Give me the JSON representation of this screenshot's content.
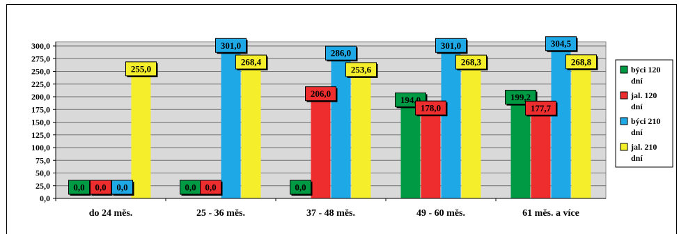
{
  "chart_data": {
    "type": "bar",
    "categories": [
      "do 24 měs.",
      "25 - 36 měs.",
      "37 - 48  měs.",
      "49 - 60 měs.",
      "61 měs. a více"
    ],
    "series": [
      {
        "name": "býci 120 dní",
        "color": "#009a44",
        "values": [
          0.0,
          0.0,
          0.0,
          194.0,
          199.2
        ],
        "labels": [
          "0,0",
          "0,0",
          "0,0",
          "194,0",
          "199,2"
        ]
      },
      {
        "name": "jal. 120 dní",
        "color": "#ee2e2e",
        "values": [
          0.0,
          0.0,
          206.0,
          178.0,
          177.7
        ],
        "labels": [
          "0,0",
          "0,0",
          "206,0",
          "178,0",
          "177,7"
        ]
      },
      {
        "name": "býci 210 dní",
        "color": "#1ea8e6",
        "values": [
          0.0,
          301.0,
          286.0,
          301.0,
          304.5
        ],
        "labels": [
          "0,0",
          "301,0",
          "286,0",
          "301,0",
          "304,5"
        ]
      },
      {
        "name": "jal. 210 dní",
        "color": "#f5ee2a",
        "values": [
          255.0,
          268.4,
          253.6,
          268.3,
          268.8
        ],
        "labels": [
          "255,0",
          "268,4",
          "253,6",
          "268,3",
          "268,8"
        ]
      }
    ],
    "yticks": [
      "0,0",
      "25,0",
      "50,0",
      "75,0",
      "100,0",
      "125,0",
      "150,0",
      "175,0",
      "200,0",
      "225,0",
      "250,0",
      "275,0",
      "300,0"
    ],
    "ylim": [
      0,
      300
    ],
    "grid": true,
    "legend_position": "right",
    "legend_lines": [
      [
        "býci 120",
        "dní"
      ],
      [
        "jal. 120",
        "dní"
      ],
      [
        "býci 210",
        "dní"
      ],
      [
        "jal. 210",
        "dní"
      ]
    ]
  }
}
